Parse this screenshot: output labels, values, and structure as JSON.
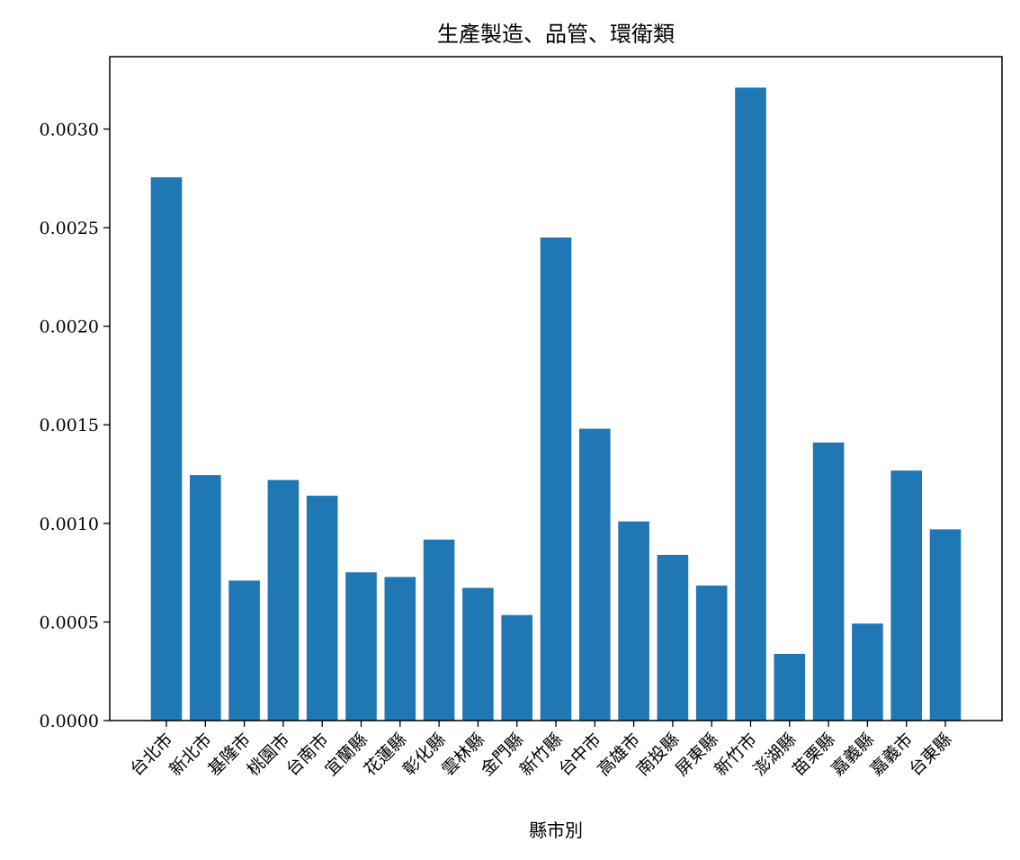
{
  "chart_data": {
    "type": "bar",
    "title": "生產製造、品管、環衛類",
    "xlabel": "縣市別",
    "ylabel": "",
    "categories": [
      "台北市",
      "新北市",
      "基隆市",
      "桃園市",
      "台南市",
      "宜蘭縣",
      "花蓮縣",
      "彰化縣",
      "雲林縣",
      "金門縣",
      "新竹縣",
      "台中市",
      "高雄市",
      "南投縣",
      "屏東縣",
      "新竹市",
      "澎湖縣",
      "苗栗縣",
      "嘉義縣",
      "嘉義市",
      "台東縣"
    ],
    "values": [
      0.002755,
      0.001245,
      0.00071,
      0.00122,
      0.00114,
      0.000752,
      0.000728,
      0.000918,
      0.000673,
      0.000535,
      0.00245,
      0.00148,
      0.00101,
      0.00084,
      0.000685,
      0.00321,
      0.000338,
      0.00141,
      0.000492,
      0.001268,
      0.00097
    ],
    "ylim": [
      0,
      0.003367
    ],
    "yticks": [
      0.0,
      0.0005,
      0.001,
      0.0015,
      0.002,
      0.0025,
      0.003
    ],
    "ytick_labels": [
      "0.0000",
      "0.0005",
      "0.0010",
      "0.0015",
      "0.0020",
      "0.0025",
      "0.0030"
    ],
    "bar_color": "#1f77b4",
    "grid": false,
    "legend": "none"
  }
}
